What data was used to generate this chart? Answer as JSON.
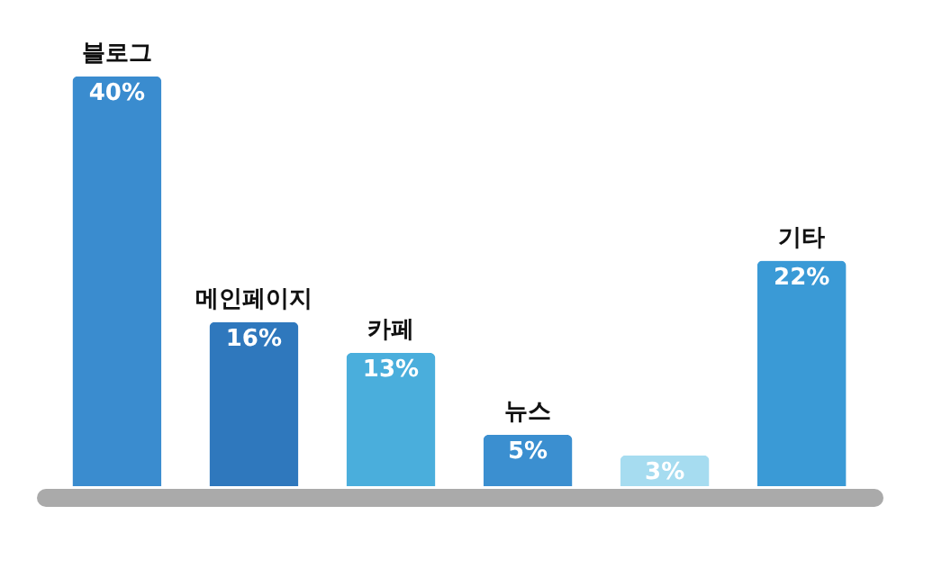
{
  "chart_data": {
    "type": "bar",
    "categories": [
      "블로그",
      "메인페이지",
      "카페",
      "뉴스",
      null,
      "기타"
    ],
    "values": [
      40,
      16,
      13,
      5,
      3,
      22
    ],
    "value_labels": [
      "40%",
      "16%",
      "13%",
      "5%",
      "3%",
      "22%"
    ],
    "colors": [
      "#3a8ccf",
      "#2f78bd",
      "#4aaedc",
      "#3b8fd0",
      "#a6dcf0",
      "#3a9ad6"
    ]
  }
}
